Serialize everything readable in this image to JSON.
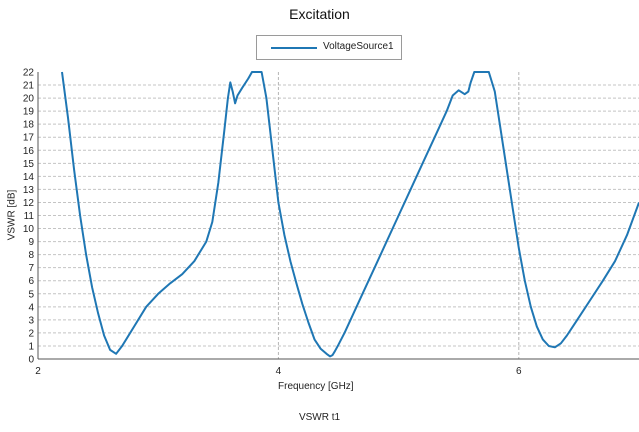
{
  "chart_data": {
    "type": "line",
    "title": "Excitation",
    "xlabel": "Frequency [GHz]",
    "ylabel": "VSWR [dB]",
    "footer": "VSWR   t1",
    "xlim": [
      2,
      7
    ],
    "ylim": [
      0,
      22
    ],
    "x_ticks": [
      "2",
      "4",
      "6"
    ],
    "y_ticks": [
      "0",
      "1",
      "2",
      "3",
      "4",
      "5",
      "6",
      "7",
      "8",
      "9",
      "10",
      "11",
      "12",
      "13",
      "14",
      "15",
      "16",
      "17",
      "18",
      "19",
      "20",
      "21",
      "22"
    ],
    "grid": true,
    "legend_position": "top-center",
    "series": [
      {
        "name": "VoltageSource1",
        "color": "#1f77b4",
        "x": [
          2.2,
          2.25,
          2.3,
          2.35,
          2.4,
          2.45,
          2.5,
          2.55,
          2.6,
          2.65,
          2.7,
          2.8,
          2.9,
          3.0,
          3.1,
          3.2,
          3.3,
          3.4,
          3.45,
          3.5,
          3.55,
          3.58,
          3.6,
          3.62,
          3.64,
          3.66,
          3.7,
          3.75,
          3.78,
          3.82,
          3.86,
          3.9,
          3.95,
          4.0,
          4.05,
          4.1,
          4.15,
          4.2,
          4.25,
          4.3,
          4.35,
          4.4,
          4.43,
          4.45,
          4.47,
          4.5,
          4.55,
          4.6,
          4.7,
          4.8,
          4.9,
          5.0,
          5.1,
          5.2,
          5.3,
          5.4,
          5.45,
          5.5,
          5.55,
          5.58,
          5.6,
          5.63,
          5.66,
          5.7,
          5.75,
          5.8,
          5.85,
          5.9,
          5.95,
          6.0,
          6.05,
          6.1,
          6.15,
          6.2,
          6.25,
          6.3,
          6.35,
          6.4,
          6.45,
          6.5,
          6.6,
          6.7,
          6.8,
          6.9,
          7.0
        ],
        "y": [
          22.0,
          18.5,
          14.5,
          11.0,
          8.0,
          5.5,
          3.5,
          1.8,
          0.7,
          0.4,
          1.0,
          2.5,
          4.0,
          5.0,
          5.8,
          6.5,
          7.5,
          9.0,
          10.5,
          13.5,
          17.5,
          20.0,
          21.2,
          20.5,
          19.6,
          20.2,
          20.8,
          21.5,
          22.0,
          22.0,
          22.0,
          20.0,
          16.0,
          12.0,
          9.5,
          7.5,
          5.8,
          4.2,
          2.8,
          1.5,
          0.8,
          0.4,
          0.2,
          0.3,
          0.6,
          1.1,
          2.0,
          3.0,
          5.0,
          7.0,
          9.0,
          11.0,
          13.0,
          15.0,
          17.0,
          19.0,
          20.2,
          20.6,
          20.3,
          20.5,
          21.2,
          22.0,
          22.0,
          22.0,
          22.0,
          20.5,
          17.5,
          14.5,
          11.5,
          8.5,
          6.0,
          4.0,
          2.5,
          1.5,
          1.0,
          0.9,
          1.2,
          1.8,
          2.5,
          3.2,
          4.6,
          6.0,
          7.5,
          9.5,
          12.0
        ]
      }
    ]
  }
}
